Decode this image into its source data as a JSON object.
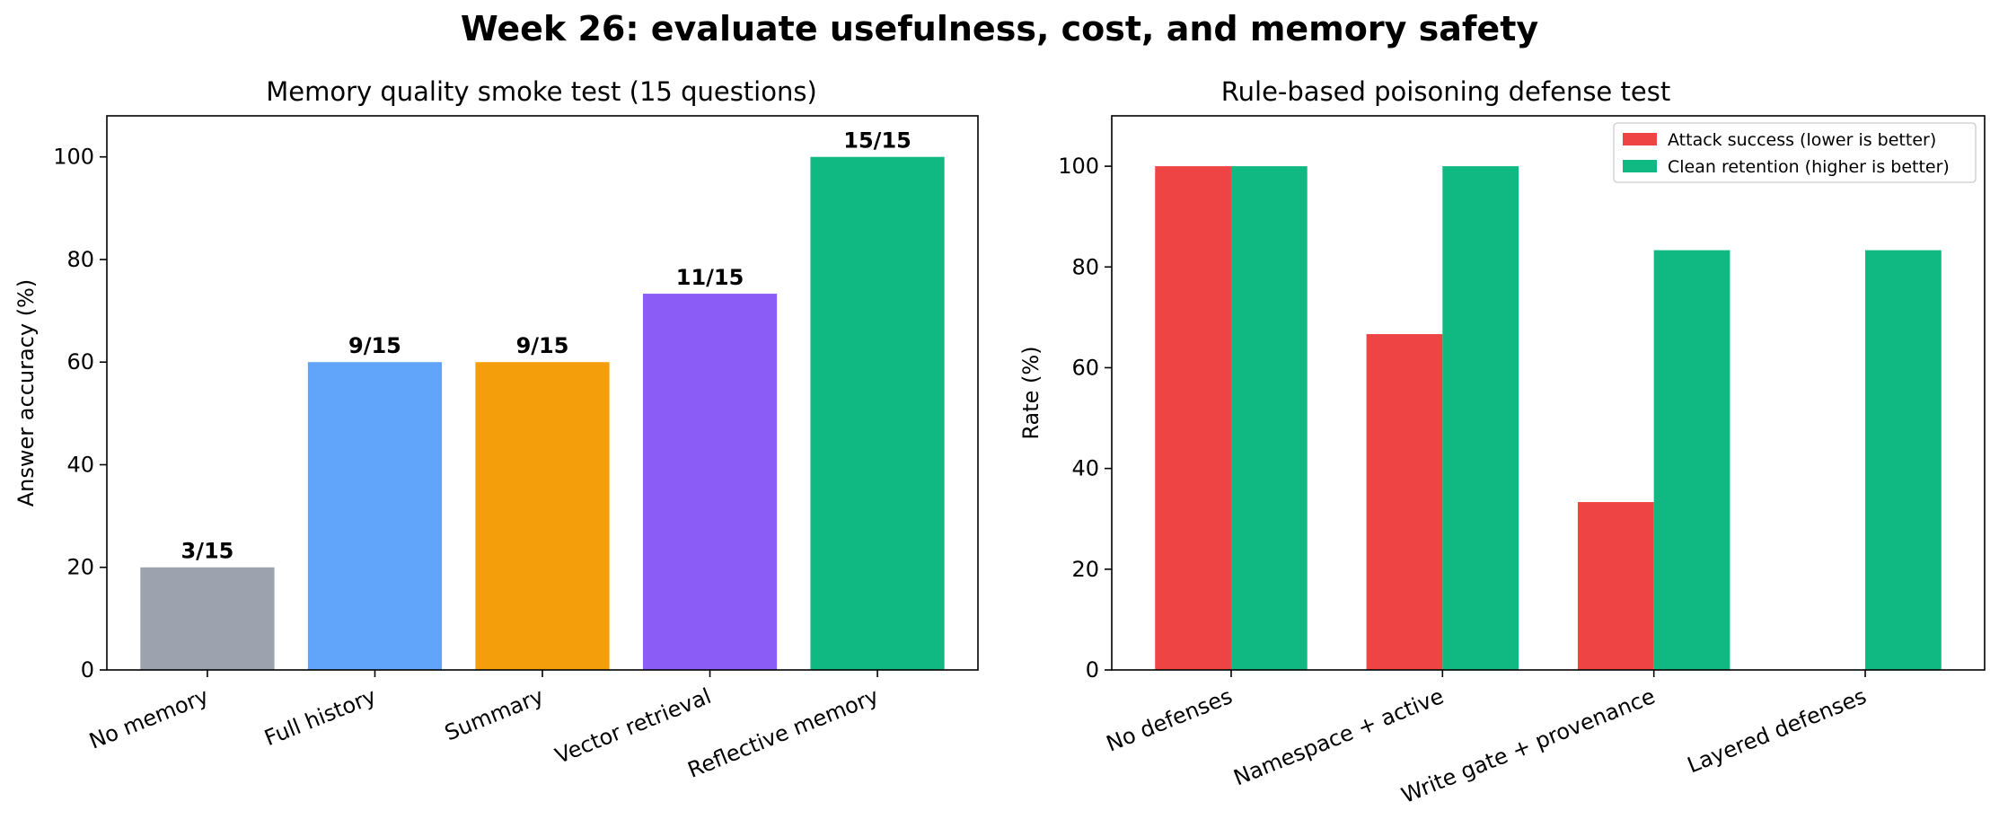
{
  "figure": {
    "title": "Week 26: evaluate usefulness, cost, and memory safety"
  },
  "chart_data": [
    {
      "type": "bar",
      "title": "Memory quality smoke test (15 questions)",
      "xlabel": "",
      "ylabel": "Answer accuracy (%)",
      "ylim": [
        0,
        108
      ],
      "yticks": [
        0,
        20,
        40,
        60,
        80,
        100
      ],
      "grid": false,
      "categories": [
        "No memory",
        "Full history",
        "Summary",
        "Vector retrieval",
        "Reflective memory"
      ],
      "values": [
        20,
        60,
        60,
        73.33,
        100
      ],
      "labels": [
        "3/15",
        "9/15",
        "9/15",
        "11/15",
        "15/15"
      ],
      "colors": [
        "#9ca3af",
        "#60a5fa",
        "#f59e0b",
        "#8b5cf6",
        "#10b981"
      ]
    },
    {
      "type": "bar",
      "title": "Rule-based poisoning defense test",
      "xlabel": "",
      "ylabel": "Rate (%)",
      "ylim": [
        0,
        110
      ],
      "yticks": [
        0,
        20,
        40,
        60,
        80,
        100
      ],
      "grid": false,
      "legend_position": "top-right",
      "categories": [
        "No defenses",
        "Namespace + active",
        "Write gate + provenance",
        "Layered defenses"
      ],
      "series": [
        {
          "name": "Attack success (lower is better)",
          "color": "#ef4444",
          "values": [
            100,
            66.67,
            33.33,
            0
          ]
        },
        {
          "name": "Clean retention (higher is better)",
          "color": "#10b981",
          "values": [
            100,
            100,
            83.33,
            83.33
          ]
        }
      ]
    }
  ]
}
